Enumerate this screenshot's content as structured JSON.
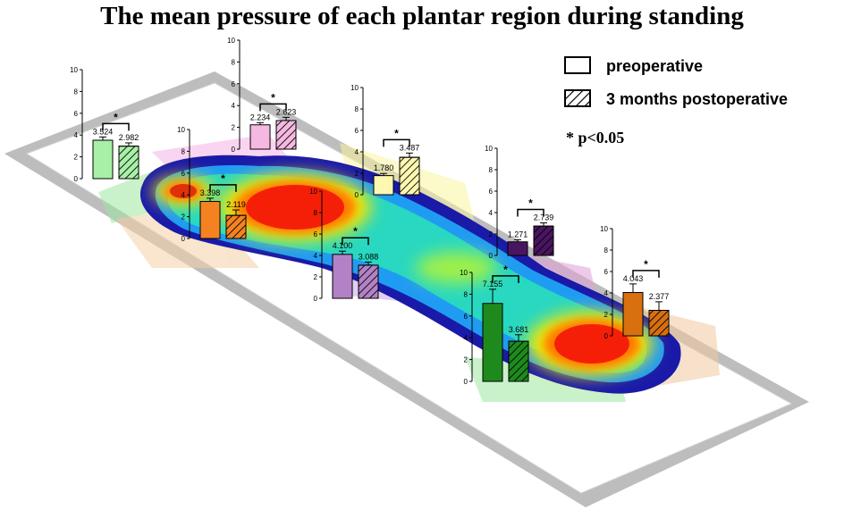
{
  "title": "The mean pressure of each plantar region during standing",
  "legend": [
    {
      "label": "preoperative",
      "pattern": "plain"
    },
    {
      "label": "3 months postoperative",
      "pattern": "hatched"
    }
  ],
  "significance_note": "* p<0.05",
  "chart_data": {
    "type": "bar",
    "title": "The mean pressure of each plantar region during standing",
    "ylim": [
      0,
      10
    ],
    "yticks": [
      "0",
      "2",
      "4",
      "6",
      "8",
      "10"
    ],
    "significance_marker": "*",
    "series": [
      {
        "name": "preoperative"
      },
      {
        "name": "3 months postoperative"
      }
    ],
    "groups": [
      {
        "color": "#a8f0a8",
        "values": [
          3.524,
          2.982
        ],
        "labels": [
          "3.524",
          "2.982"
        ],
        "errors": [
          0.3,
          0.3
        ],
        "significant": true
      },
      {
        "color": "#f5b8e0",
        "values": [
          2.234,
          2.623
        ],
        "labels": [
          "2.234",
          "2.623"
        ],
        "errors": [
          0.2,
          0.3
        ],
        "significant": true
      },
      {
        "color": "#f58220",
        "values": [
          3.398,
          2.119
        ],
        "labels": [
          "3.398",
          "2.119"
        ],
        "errors": [
          0.3,
          0.5
        ],
        "significant": true
      },
      {
        "color": "#fcf8b0",
        "values": [
          1.78,
          3.487
        ],
        "labels": [
          "1.780",
          "3.487"
        ],
        "errors": [
          0.2,
          0.4
        ],
        "significant": true
      },
      {
        "color": "#b382c6",
        "values": [
          4.1,
          3.088
        ],
        "labels": [
          "4.100",
          "3.088"
        ],
        "errors": [
          0.3,
          0.3
        ],
        "significant": true
      },
      {
        "color": "#4a1560",
        "values": [
          1.271,
          2.739
        ],
        "labels": [
          "1.271",
          "2.739"
        ],
        "errors": [
          0.2,
          0.3
        ],
        "significant": true
      },
      {
        "color": "#1e8a1e",
        "values": [
          7.155,
          3.681
        ],
        "labels": [
          "7.155",
          "3.681"
        ],
        "errors": [
          1.3,
          0.6
        ],
        "significant": true
      },
      {
        "color": "#d87010",
        "values": [
          4.043,
          2.377
        ],
        "labels": [
          "4.043",
          "2.377"
        ],
        "errors": [
          0.8,
          0.8
        ],
        "significant": true
      }
    ]
  }
}
